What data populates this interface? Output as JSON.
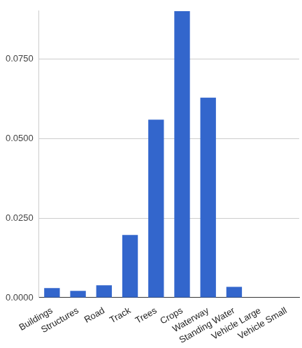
{
  "chart_data": {
    "type": "bar",
    "categories": [
      "Buildings",
      "Structures",
      "Road",
      "Track",
      "Trees",
      "Crops",
      "Waterway",
      "Standing Water",
      "Vehicle Large",
      "Vehicle Small"
    ],
    "values": [
      0.003,
      0.0021,
      0.0039,
      0.0197,
      0.0559,
      0.09,
      0.0628,
      0.0034,
      0,
      0
    ],
    "color": "#3366cc",
    "ylim": [
      0,
      0.09
    ],
    "yticks": [
      {
        "value": 0,
        "label": "0.0000"
      },
      {
        "value": 0.025,
        "label": "0.0250"
      },
      {
        "value": 0.05,
        "label": "0.0500"
      },
      {
        "value": 0.075,
        "label": "0.0750"
      }
    ],
    "grid": true
  }
}
